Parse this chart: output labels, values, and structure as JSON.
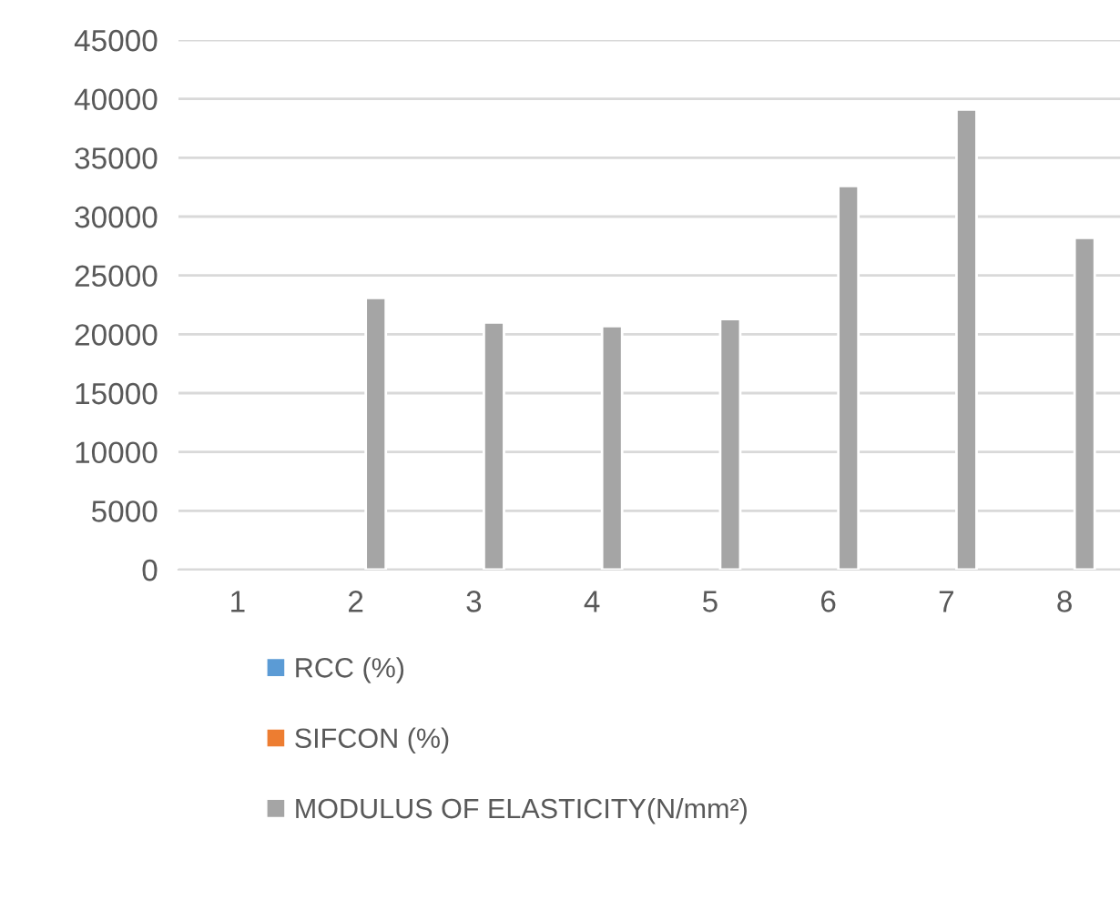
{
  "chart_data": {
    "type": "bar",
    "categories": [
      "1",
      "2",
      "3",
      "4",
      "5",
      "6",
      "7",
      "8"
    ],
    "series": [
      {
        "name": "RCC (%)",
        "color": "#5b9bd5",
        "values": [
          null,
          null,
          null,
          null,
          null,
          null,
          null,
          null
        ]
      },
      {
        "name": "SIFCON (%)",
        "color": "#ed7d31",
        "values": [
          null,
          null,
          null,
          null,
          null,
          null,
          null,
          null
        ]
      },
      {
        "name": "MODULUS OF ELASTICITY(N/mm²)",
        "color": "#a5a5a5",
        "values": [
          null,
          23100,
          21000,
          20700,
          21300,
          32600,
          39100,
          28200
        ]
      }
    ],
    "ylim": [
      0,
      45000
    ],
    "yticks": [
      0,
      5000,
      10000,
      15000,
      20000,
      25000,
      30000,
      35000,
      40000,
      45000
    ],
    "grid": "y",
    "legend": "bottom"
  }
}
